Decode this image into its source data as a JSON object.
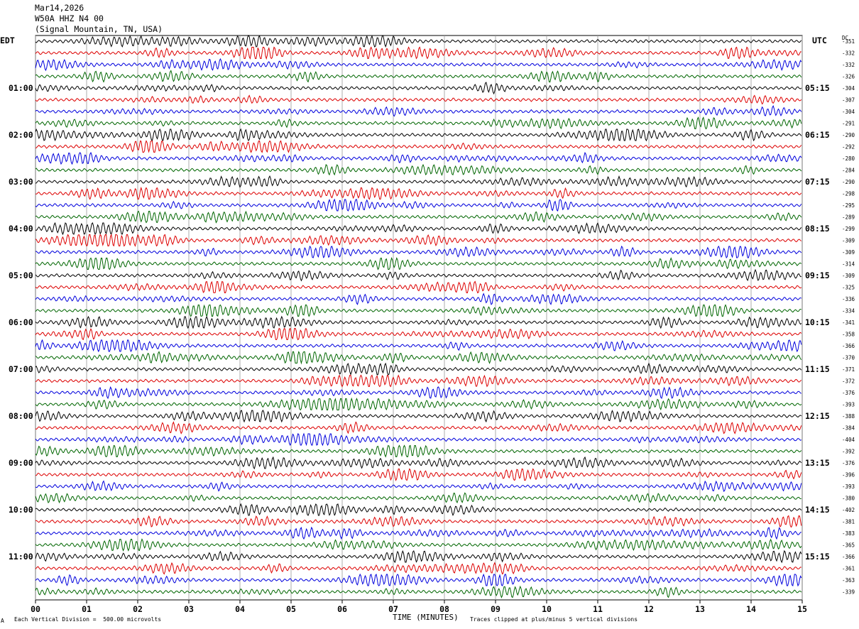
{
  "header": {
    "date": "Mar14,2026",
    "station": "W50A HHZ N4 00",
    "location": "(Signal Mountain, TN, USA)"
  },
  "left_zone_label": "EDT",
  "right_zone_label": "UTC",
  "dc_label": "DC",
  "footer": {
    "scale_note": "Each Vertical Division =  500.00 microvolts",
    "clip_note": "Traces clipped at plus/minus 5 vertical divisions",
    "corner_mark": "A"
  },
  "colors": {
    "trace_cycle": [
      "#000000",
      "#dd0000",
      "#0000dd",
      "#006600"
    ],
    "grid": "#999999"
  },
  "chart_data": {
    "type": "line",
    "subtype": "helicorder",
    "xlabel": "TIME (MINUTES)",
    "x_ticks": [
      "00",
      "01",
      "02",
      "03",
      "04",
      "05",
      "06",
      "07",
      "08",
      "09",
      "10",
      "11",
      "12",
      "13",
      "14",
      "15"
    ],
    "xlim": [
      0,
      15
    ],
    "minutes_per_line": 15,
    "lines_per_hour": 4,
    "left_hour_labels": [
      "01:00",
      "02:00",
      "03:00",
      "04:00",
      "05:00",
      "06:00",
      "07:00",
      "08:00",
      "09:00",
      "10:00",
      "11:00"
    ],
    "right_hour_labels": [
      "05:15",
      "06:15",
      "07:15",
      "08:15",
      "09:15",
      "10:15",
      "11:15",
      "12:15",
      "13:15",
      "14:15",
      "15:15"
    ],
    "dc_offsets": [
      -351,
      -332,
      -332,
      -326,
      -304,
      -307,
      -304,
      -291,
      -290,
      -292,
      -280,
      -284,
      -290,
      -298,
      -295,
      -289,
      -299,
      -309,
      -309,
      -314,
      -309,
      -325,
      -336,
      -334,
      -341,
      -358,
      -366,
      -370,
      -371,
      -372,
      -376,
      -393,
      -388,
      -384,
      -404,
      -392,
      -376,
      -396,
      -393,
      -380,
      -402,
      -381,
      -383,
      -365,
      -366,
      -361,
      -363,
      -339
    ]
  }
}
